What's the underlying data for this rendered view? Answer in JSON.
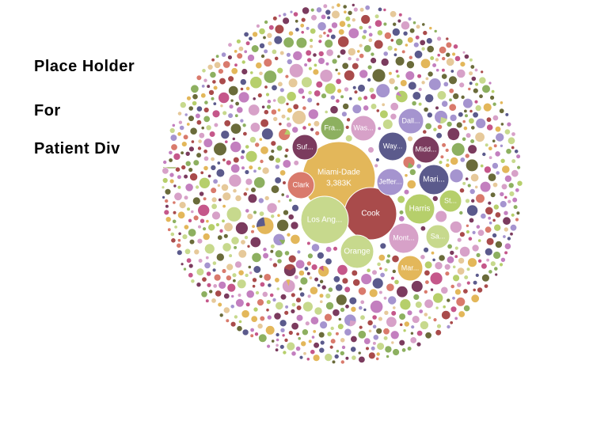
{
  "placeholder": {
    "line1": "Place Holder",
    "line2": "For",
    "line3": "Patient Div"
  },
  "colors": {
    "palette": [
      "#e3b75a",
      "#a94b4b",
      "#c7d98d",
      "#b6cf6b",
      "#5b5a8c",
      "#7b3b5e",
      "#d7a1c8",
      "#d97a6c",
      "#8db060",
      "#6a6b3a",
      "#a594cf",
      "#e6c99a",
      "#c37fbf",
      "#c5578a"
    ],
    "background": "#ffffff"
  },
  "chart_data": {
    "type": "bubble",
    "title": "",
    "bubbles": [
      {
        "label": "Miami-Dade",
        "value_label": "3,383K",
        "color": "#e3b75a"
      },
      {
        "label": "Cook",
        "color": "#a94b4b"
      },
      {
        "label": "Los Ang...",
        "color": "#c7d98d"
      },
      {
        "label": "Orange",
        "color": "#c7d98d"
      },
      {
        "label": "Harris",
        "color": "#b6cf6b"
      },
      {
        "label": "Mari...",
        "color": "#5b5a8c"
      },
      {
        "label": "Clark",
        "color": "#d97a6c"
      },
      {
        "label": "Jeffer...",
        "color": "#a594cf"
      },
      {
        "label": "Way...",
        "color": "#5b5a8c"
      },
      {
        "label": "Midd...",
        "color": "#7b3b5e"
      },
      {
        "label": "Dall...",
        "color": "#a594cf"
      },
      {
        "label": "Was...",
        "color": "#d7a1c8"
      },
      {
        "label": "Fra...",
        "color": "#8db060"
      },
      {
        "label": "Suf...",
        "color": "#7b3b5e"
      },
      {
        "label": "Mont...",
        "color": "#d7a1c8"
      },
      {
        "label": "Mar...",
        "color": "#e3b75a"
      },
      {
        "label": "Sa...",
        "color": "#c7d98d"
      },
      {
        "label": "St...",
        "color": "#b6cf6b"
      }
    ]
  }
}
